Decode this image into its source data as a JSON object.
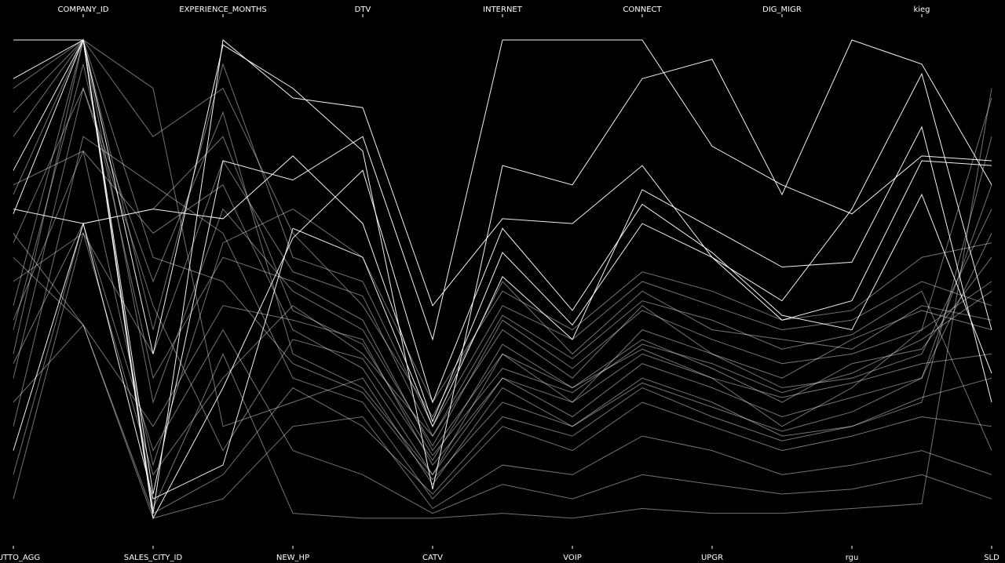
{
  "chart_data": {
    "type": "parallel",
    "dimensions": [
      "BRUTTO_AGG",
      "COMPANY_ID",
      "SALES_CITY_ID",
      "EXPERIENCE_MONTHS",
      "NEW_HP",
      "DTV",
      "CATV",
      "INTERNET",
      "VOIP",
      "CONNECT",
      "UPGR",
      "DIG_MIGR",
      "rgu",
      "kieg",
      "SLD"
    ],
    "color": "#ffffff",
    "records": [
      [
        1,
        1,
        0.02,
        1,
        0.88,
        0.86,
        0.45,
        0.63,
        0.62,
        0.74,
        0.55,
        0.46,
        0.65,
        0.93,
        0.4
      ],
      [
        0.92,
        1,
        0.06,
        0.75,
        0.71,
        0.8,
        0.38,
        1,
        1,
        1,
        0.78,
        0.7,
        0.64,
        0.76,
        0.75
      ],
      [
        0.73,
        1,
        0.35,
        0.99,
        0.9,
        0.77,
        0.07,
        0.74,
        0.7,
        0.92,
        0.96,
        0.68,
        1,
        0.95,
        0.7
      ],
      [
        0.64,
        1,
        0.01,
        0.28,
        0.59,
        0.73,
        0.25,
        0.61,
        0.44,
        0.66,
        0.56,
        0.43,
        0.4,
        0.68,
        0.31
      ],
      [
        0.65,
        0.62,
        0.65,
        0.63,
        0.76,
        0.62,
        0.21,
        0.56,
        0.41,
        0.62,
        0.55,
        0.42,
        0.46,
        0.75,
        0.74
      ],
      [
        0.15,
        0.62,
        0.05,
        0.12,
        0.61,
        0.55,
        0.2,
        0.51,
        0.38,
        0.69,
        0.61,
        0.53,
        0.54,
        0.82,
        0.25
      ],
      [
        0.5,
        0.6,
        0.1,
        0.3,
        0.45,
        0.35,
        0.18,
        0.4,
        0.3,
        0.45,
        0.35,
        0.3,
        0.38,
        0.44,
        0.4
      ],
      [
        0.4,
        0.95,
        0.3,
        0.55,
        0.5,
        0.42,
        0.15,
        0.35,
        0.28,
        0.38,
        0.32,
        0.25,
        0.33,
        0.36,
        0.55
      ],
      [
        0.3,
        0.9,
        0.5,
        0.85,
        0.35,
        0.28,
        0.1,
        0.3,
        0.22,
        0.33,
        0.28,
        0.22,
        0.26,
        0.3,
        0.6
      ],
      [
        0.55,
        0.41,
        0.2,
        0.45,
        0.42,
        0.38,
        0.12,
        0.3,
        0.25,
        0.35,
        0.3,
        0.2,
        0.28,
        0.4,
        0.5
      ],
      [
        0.2,
        0.8,
        0.7,
        0.6,
        0.3,
        0.25,
        0.05,
        0.2,
        0.15,
        0.25,
        0.2,
        0.15,
        0.18,
        0.22,
        0.2
      ],
      [
        0.8,
        1,
        0.9,
        0.2,
        0.25,
        0.3,
        0.08,
        0.28,
        0.2,
        0.3,
        0.25,
        0.18,
        0.2,
        0.25,
        0.8
      ],
      [
        0.6,
        0.41,
        0.01,
        0.05,
        0.2,
        0.22,
        0.03,
        0.12,
        0.1,
        0.18,
        0.15,
        0.1,
        0.12,
        0.15,
        0.1
      ],
      [
        0.35,
        1,
        0.4,
        0.95,
        0.55,
        0.5,
        0.2,
        0.45,
        0.38,
        0.5,
        0.45,
        0.4,
        0.42,
        0.5,
        0.45
      ],
      [
        0.7,
        0.77,
        0.6,
        0.7,
        0.4,
        0.32,
        0.1,
        0.35,
        0.25,
        0.4,
        0.35,
        0.28,
        0.3,
        0.35,
        0.65
      ],
      [
        0.1,
        0.62,
        0.15,
        0.4,
        0.15,
        0.1,
        0.02,
        0.08,
        0.05,
        0.1,
        0.08,
        0.06,
        0.07,
        0.1,
        0.05
      ],
      [
        0.45,
        1,
        0.8,
        0.9,
        0.6,
        0.45,
        0.22,
        0.5,
        0.35,
        0.48,
        0.4,
        0.38,
        0.36,
        0.45,
        0.42
      ],
      [
        0.25,
        0.41,
        0.02,
        0.1,
        0.28,
        0.2,
        0.06,
        0.22,
        0.18,
        0.28,
        0.22,
        0.17,
        0.2,
        0.26,
        0.3
      ],
      [
        0.85,
        1,
        0.25,
        0.65,
        0.48,
        0.4,
        0.16,
        0.42,
        0.32,
        0.44,
        0.38,
        0.33,
        0.35,
        0.4,
        0.88
      ],
      [
        0.58,
        0.9,
        0.45,
        0.15,
        0.38,
        0.34,
        0.13,
        0.37,
        0.28,
        0.36,
        0.3,
        0.26,
        0.29,
        0.33,
        0.35
      ],
      [
        0.05,
        0.6,
        0.35,
        0.75,
        0.52,
        0.47,
        0.18,
        0.43,
        0.34,
        0.46,
        0.42,
        0.36,
        0.39,
        0.48,
        0.15
      ],
      [
        0.68,
        1,
        0.55,
        0.5,
        0.33,
        0.27,
        0.09,
        0.25,
        0.2,
        0.29,
        0.24,
        0.19,
        0.23,
        0.3,
        0.7
      ],
      [
        0.42,
        0.77,
        0.12,
        0.58,
        0.65,
        0.55,
        0.25,
        0.48,
        0.4,
        0.52,
        0.48,
        0.42,
        0.44,
        0.55,
        0.58
      ],
      [
        0.9,
        1,
        0.03,
        0.35,
        0.02,
        0.01,
        0.01,
        0.02,
        0.01,
        0.03,
        0.02,
        0.02,
        0.03,
        0.04,
        0.9
      ],
      [
        0.33,
        0.62,
        0.65,
        0.8,
        0.44,
        0.37,
        0.14,
        0.32,
        0.27,
        0.37,
        0.33,
        0.27,
        0.31,
        0.38,
        0.48
      ]
    ]
  }
}
